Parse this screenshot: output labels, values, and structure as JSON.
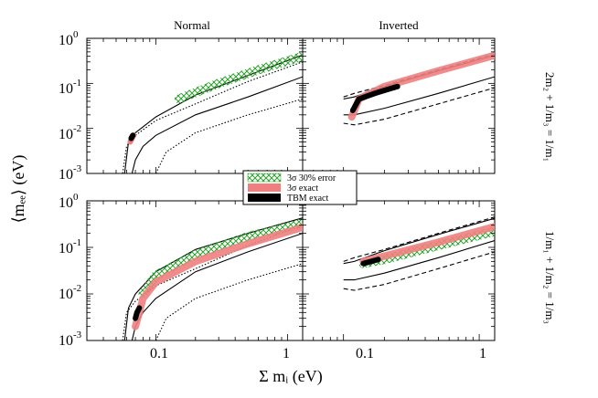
{
  "chart_data": {
    "type": "line",
    "column_titles": [
      "Normal",
      "Inverted"
    ],
    "row_labels": [
      "2m₂ + 1/m₃ = 1/m₁",
      "1/m₁ + 1/m₂ = 1/m₃"
    ],
    "xlabel": "Σ mᵢ (eV)",
    "ylabel": "⟨mₑₑ⟩ (eV)",
    "x_scale": "log",
    "y_scale": "log",
    "xlim": [
      0.03,
      1.3
    ],
    "ylim": [
      0.001,
      1
    ],
    "x_ticks": [
      {
        "value": 0.1,
        "label": "0.1"
      },
      {
        "value": 1,
        "label": "1"
      }
    ],
    "y_ticks": [
      {
        "value": 0.001,
        "base": "10",
        "exp": "-3"
      },
      {
        "value": 0.01,
        "base": "10",
        "exp": "-2"
      },
      {
        "value": 0.1,
        "base": "10",
        "exp": "-1"
      },
      {
        "value": 1,
        "base": "10",
        "exp": "0"
      }
    ],
    "legend": {
      "placement": "center",
      "entries": [
        {
          "label": "3σ 30% error",
          "color": "#2ca02c",
          "style": "crosshatch"
        },
        {
          "label": "3σ exact",
          "color": "#f08080",
          "style": "fill"
        },
        {
          "label": "TBM exact",
          "color": "#000000",
          "style": "fill"
        }
      ]
    },
    "panels": [
      {
        "id": "normal-top",
        "series": [
          {
            "style": "dotted",
            "x": [
              0.056,
              0.06,
              0.07,
              0.1,
              0.2,
              0.5,
              1.3
            ],
            "y": [
              0.001,
              0.004,
              0.007,
              0.015,
              0.035,
              0.11,
              0.3
            ]
          },
          {
            "style": "solid",
            "x": [
              0.058,
              0.062,
              0.07,
              0.1,
              0.2,
              0.5,
              1.3
            ],
            "y": [
              0.001,
              0.005,
              0.008,
              0.018,
              0.055,
              0.15,
              0.43
            ]
          },
          {
            "style": "solid",
            "x": [
              0.066,
              0.07,
              0.08,
              0.1,
              0.2,
              0.5,
              1.3
            ],
            "y": [
              0.001,
              0.002,
              0.004,
              0.007,
              0.02,
              0.05,
              0.14
            ]
          },
          {
            "style": "dotted",
            "x": [
              0.1,
              0.12,
              0.2,
              0.5,
              1.3
            ],
            "y": [
              0.001,
              0.003,
              0.008,
              0.02,
              0.045
            ]
          },
          {
            "style": "band",
            "color": "#2ca02c",
            "x": [
              0.15,
              0.3,
              0.6,
              1.3
            ],
            "y": [
              0.045,
              0.1,
              0.2,
              0.4
            ]
          },
          {
            "style": "blob",
            "color": "#f08080",
            "x": [
              0.064,
              0.066,
              0.068
            ],
            "y": [
              0.005,
              0.006,
              0.007
            ]
          },
          {
            "style": "blob",
            "color": "#000000",
            "x": [
              0.065,
              0.067
            ],
            "y": [
              0.006,
              0.007
            ]
          }
        ]
      },
      {
        "id": "inverted-top",
        "series": [
          {
            "style": "dashed",
            "x": [
              0.1,
              0.12,
              0.2,
              0.5,
              1.3
            ],
            "y": [
              0.05,
              0.06,
              0.09,
              0.2,
              0.45
            ]
          },
          {
            "style": "dashed",
            "x": [
              0.1,
              0.12,
              0.2,
              0.5,
              1.3
            ],
            "y": [
              0.013,
              0.012,
              0.016,
              0.035,
              0.08
            ]
          },
          {
            "style": "solid",
            "x": [
              0.1,
              0.12,
              0.2,
              0.5,
              1.3
            ],
            "y": [
              0.045,
              0.05,
              0.085,
              0.19,
              0.42
            ]
          },
          {
            "style": "solid",
            "x": [
              0.1,
              0.12,
              0.2,
              0.5,
              1.3
            ],
            "y": [
              0.02,
              0.02,
              0.028,
              0.06,
              0.14
            ]
          },
          {
            "style": "band",
            "color": "#f08080",
            "x": [
              0.115,
              0.13,
              0.2,
              0.5,
              1.3
            ],
            "y": [
              0.018,
              0.045,
              0.085,
              0.19,
              0.42
            ]
          },
          {
            "style": "blob",
            "color": "#000000",
            "x": [
              0.117,
              0.13,
              0.17,
              0.2,
              0.25
            ],
            "y": [
              0.025,
              0.045,
              0.06,
              0.07,
              0.085
            ]
          }
        ]
      },
      {
        "id": "normal-bottom",
        "series": [
          {
            "style": "dotted",
            "x": [
              0.056,
              0.06,
              0.07,
              0.1,
              0.2,
              0.5,
              1.3
            ],
            "y": [
              0.001,
              0.004,
              0.007,
              0.015,
              0.035,
              0.11,
              0.3
            ]
          },
          {
            "style": "solid",
            "x": [
              0.058,
              0.062,
              0.07,
              0.1,
              0.2,
              0.5,
              1.3
            ],
            "y": [
              0.001,
              0.005,
              0.01,
              0.03,
              0.09,
              0.2,
              0.43
            ]
          },
          {
            "style": "solid",
            "x": [
              0.066,
              0.07,
              0.08,
              0.1,
              0.2,
              0.5,
              1.3
            ],
            "y": [
              0.001,
              0.002,
              0.004,
              0.008,
              0.03,
              0.08,
              0.2
            ]
          },
          {
            "style": "dotted",
            "x": [
              0.1,
              0.12,
              0.2,
              0.5,
              1.3
            ],
            "y": [
              0.001,
              0.003,
              0.008,
              0.02,
              0.045
            ]
          },
          {
            "style": "band",
            "color": "#2ca02c",
            "x": [
              0.08,
              0.1,
              0.2,
              0.5,
              1.3
            ],
            "y": [
              0.01,
              0.025,
              0.07,
              0.17,
              0.33
            ]
          },
          {
            "style": "band",
            "color": "#f08080",
            "x": [
              0.07,
              0.08,
              0.1,
              0.2,
              0.5,
              1.3
            ],
            "y": [
              0.002,
              0.008,
              0.018,
              0.05,
              0.12,
              0.27
            ]
          },
          {
            "style": "blob",
            "color": "#000000",
            "x": [
              0.07,
              0.072,
              0.075
            ],
            "y": [
              0.003,
              0.004,
              0.005
            ]
          }
        ]
      },
      {
        "id": "inverted-bottom",
        "series": [
          {
            "style": "dashed",
            "x": [
              0.1,
              0.12,
              0.2,
              0.5,
              1.3
            ],
            "y": [
              0.05,
              0.06,
              0.09,
              0.2,
              0.45
            ]
          },
          {
            "style": "dashed",
            "x": [
              0.1,
              0.12,
              0.2,
              0.5,
              1.3
            ],
            "y": [
              0.013,
              0.012,
              0.016,
              0.035,
              0.08
            ]
          },
          {
            "style": "solid",
            "x": [
              0.1,
              0.12,
              0.2,
              0.5,
              1.3
            ],
            "y": [
              0.045,
              0.05,
              0.085,
              0.19,
              0.42
            ]
          },
          {
            "style": "solid",
            "x": [
              0.1,
              0.12,
              0.2,
              0.5,
              1.3
            ],
            "y": [
              0.02,
              0.02,
              0.028,
              0.06,
              0.14
            ]
          },
          {
            "style": "band",
            "color": "#2ca02c",
            "x": [
              0.14,
              0.2,
              0.5,
              1.3
            ],
            "y": [
              0.045,
              0.055,
              0.11,
              0.22
            ]
          },
          {
            "style": "band",
            "color": "#f08080",
            "x": [
              0.14,
              0.2,
              0.5,
              1.3
            ],
            "y": [
              0.05,
              0.065,
              0.13,
              0.28
            ]
          },
          {
            "style": "blob",
            "color": "#000000",
            "x": [
              0.14,
              0.16,
              0.18
            ],
            "y": [
              0.045,
              0.05,
              0.055
            ]
          }
        ]
      }
    ]
  }
}
